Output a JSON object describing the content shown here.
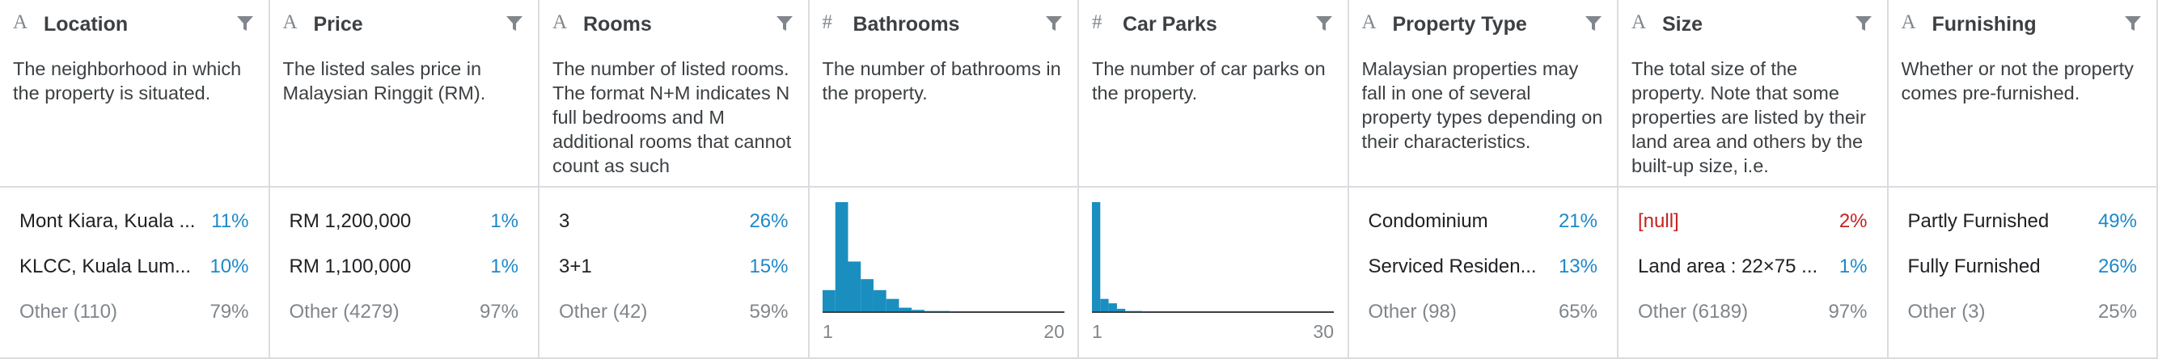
{
  "columns": [
    {
      "icon": "A",
      "name": "Location",
      "description": "The neighborhood in which the property is situated.",
      "top": [
        {
          "label": "Mont Kiara, Kuala ...",
          "pct": "11%"
        },
        {
          "label": "KLCC, Kuala Lum...",
          "pct": "10%"
        }
      ],
      "other": {
        "label": "Other (110)",
        "pct": "79%"
      }
    },
    {
      "icon": "A",
      "name": "Price",
      "description": "The listed sales price in Malaysian Ringgit (RM).",
      "top": [
        {
          "label": "RM 1,200,000",
          "pct": "1%"
        },
        {
          "label": "RM 1,100,000",
          "pct": "1%"
        }
      ],
      "other": {
        "label": "Other (4279)",
        "pct": "97%"
      }
    },
    {
      "icon": "A",
      "name": "Rooms",
      "description": "The number of listed rooms. The format N+M indicates N full bedrooms and M additional rooms that cannot count as such",
      "top": [
        {
          "label": "3",
          "pct": "26%"
        },
        {
          "label": "3+1",
          "pct": "15%"
        }
      ],
      "other": {
        "label": "Other (42)",
        "pct": "59%"
      }
    },
    {
      "icon": "#",
      "name": "Bathrooms",
      "description": "The number of bathrooms in the property.",
      "histogram": {
        "bins": [
          1,
          2,
          3,
          4,
          5,
          6,
          7,
          8,
          9,
          10,
          11,
          12,
          13,
          14,
          15,
          16,
          17,
          18,
          19,
          20
        ],
        "counts": [
          20,
          100,
          46,
          30,
          20,
          12,
          4,
          2,
          1,
          1,
          0,
          0,
          0,
          0,
          0,
          0,
          0,
          0,
          0
        ],
        "ylim": [
          0,
          100
        ],
        "min_label": "1",
        "max_label": "20"
      }
    },
    {
      "icon": "#",
      "name": "Car Parks",
      "description": "The number of car parks on the property.",
      "histogram": {
        "bins": [
          1,
          2,
          3,
          4,
          5,
          6,
          7,
          8,
          9,
          10,
          11,
          12,
          13,
          14,
          15,
          16,
          17,
          18,
          19,
          20,
          21,
          22,
          23,
          24,
          25,
          26,
          27,
          28,
          29,
          30
        ],
        "counts": [
          100,
          12,
          8,
          3,
          1,
          1,
          0,
          0,
          0,
          0,
          0,
          0,
          0,
          0,
          0,
          0,
          0,
          0,
          0,
          0,
          0,
          0,
          0,
          0,
          0,
          0,
          0,
          0,
          0
        ],
        "ylim": [
          0,
          100
        ],
        "min_label": "1",
        "max_label": "30"
      }
    },
    {
      "icon": "A",
      "name": "Property Type",
      "description": "Malaysian properties may fall in one of several property types depending on their characteristics.",
      "top": [
        {
          "label": "Condominium",
          "pct": "21%"
        },
        {
          "label": "Serviced Residen...",
          "pct": "13%"
        }
      ],
      "other": {
        "label": "Other (98)",
        "pct": "65%"
      }
    },
    {
      "icon": "A",
      "name": "Size",
      "description": "The total size of the property. Note that some properties are listed by their land area and others by the built-up size, i.e.",
      "top": [
        {
          "label": "[null]",
          "pct": "2%",
          "null": true
        },
        {
          "label": "Land area : 22×75 ...",
          "pct": "1%"
        }
      ],
      "other": {
        "label": "Other (6189)",
        "pct": "97%"
      }
    },
    {
      "icon": "A",
      "name": "Furnishing",
      "description": "Whether or not the property comes pre-furnished.",
      "top": [
        {
          "label": "Partly Furnished",
          "pct": "49%"
        },
        {
          "label": "Fully Furnished",
          "pct": "26%"
        }
      ],
      "other": {
        "label": "Other (3)",
        "pct": "25%"
      }
    }
  ],
  "bar_color": "#1a8ebf"
}
